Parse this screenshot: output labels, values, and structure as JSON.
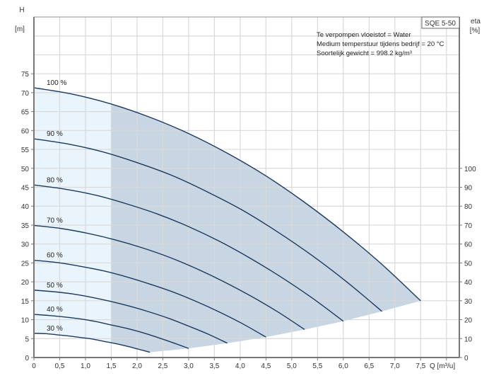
{
  "chart_data": {
    "type": "line",
    "title_box": "SQE 5-50",
    "info_lines": [
      "Te verpompen vloeistof = Water",
      "Medium temperstuur tijdens bedrijf = 20 °C",
      "Soortelijk gewicht = 998.2 kg/m³"
    ],
    "ylabel": "H",
    "ylabel_unit": "[m]",
    "y2label": "eta",
    "y2label_unit": "[%]",
    "xlabel": "Q [m³/u]",
    "xlim": [
      0,
      8.25
    ],
    "ylim": [
      0,
      90
    ],
    "y2lim": [
      0,
      180
    ],
    "grid": true,
    "x_ticks": [
      "0",
      "0,5",
      "1,0",
      "1,5",
      "2,0",
      "2,5",
      "3,0",
      "3,5",
      "4,0",
      "4,5",
      "5,0",
      "5,5",
      "6,0",
      "6,5",
      "7,0",
      "7,5"
    ],
    "x_tick_values": [
      0,
      0.5,
      1,
      1.5,
      2,
      2.5,
      3,
      3.5,
      4,
      4.5,
      5,
      5.5,
      6,
      6.5,
      7,
      7.5
    ],
    "y_ticks": [
      0,
      5,
      10,
      15,
      20,
      25,
      30,
      35,
      40,
      45,
      50,
      55,
      60,
      65,
      70,
      75
    ],
    "y2_ticks": [
      0,
      10,
      20,
      30,
      40,
      50,
      60,
      70,
      80,
      90,
      100
    ],
    "region_split_q": 1.5,
    "colors": {
      "curve": "#1d3a5f",
      "light_region": "#eaf4fd",
      "dark_region": "#c8d5e2",
      "grid": "#d9d9d9",
      "axis": "#777777"
    },
    "series": [
      {
        "name": "100 %",
        "x": [
          0,
          0.75,
          1.5,
          2.25,
          3,
          3.75,
          4.5,
          5.25,
          6,
          6.75,
          7.5
        ],
        "y": [
          71.3,
          69.6,
          67.0,
          63.5,
          59.2,
          54.0,
          48.0,
          41.0,
          33.2,
          24.6,
          15.0
        ]
      },
      {
        "name": "90 %",
        "x": [
          0,
          0.675,
          1.35,
          2.025,
          2.7,
          3.375,
          4.05,
          4.725,
          5.4,
          6.075,
          6.75
        ],
        "y": [
          57.8,
          56.4,
          54.3,
          51.4,
          48.0,
          43.7,
          38.9,
          33.2,
          26.9,
          19.9,
          12.2
        ]
      },
      {
        "name": "80 %",
        "x": [
          0,
          0.6,
          1.2,
          1.8,
          2.4,
          3.0,
          3.6,
          4.2,
          4.8,
          5.4,
          6.0
        ],
        "y": [
          45.6,
          44.5,
          42.9,
          40.6,
          37.9,
          34.6,
          30.7,
          26.2,
          21.2,
          15.7,
          9.6
        ]
      },
      {
        "name": "70 %",
        "x": [
          0,
          0.525,
          1.05,
          1.575,
          2.1,
          2.625,
          3.15,
          3.675,
          4.2,
          4.725,
          5.25
        ],
        "y": [
          34.9,
          34.1,
          32.8,
          31.1,
          29.0,
          26.5,
          23.5,
          20.1,
          16.3,
          12.1,
          7.4
        ]
      },
      {
        "name": "60 %",
        "x": [
          0,
          0.45,
          0.9,
          1.35,
          1.8,
          2.25,
          2.7,
          3.15,
          3.6,
          4.05,
          4.5
        ],
        "y": [
          25.7,
          25.1,
          24.1,
          22.9,
          21.3,
          19.4,
          17.3,
          14.8,
          12.0,
          8.9,
          5.4
        ]
      },
      {
        "name": "50 %",
        "x": [
          0,
          0.375,
          0.75,
          1.125,
          1.5,
          1.875,
          2.25,
          2.625,
          3.0,
          3.375,
          3.75
        ],
        "y": [
          17.8,
          17.4,
          16.8,
          15.9,
          14.8,
          13.5,
          12.0,
          10.3,
          8.3,
          6.2,
          3.8
        ]
      },
      {
        "name": "40 %",
        "x": [
          0,
          0.3,
          0.6,
          0.9,
          1.2,
          1.5,
          1.8,
          2.1,
          2.4,
          2.7,
          3.0
        ],
        "y": [
          11.4,
          11.1,
          10.7,
          10.2,
          9.5,
          8.6,
          7.7,
          6.6,
          5.3,
          3.9,
          2.4
        ]
      },
      {
        "name": "30 %",
        "x": [
          0,
          0.225,
          0.45,
          0.675,
          0.9,
          1.125,
          1.35,
          1.575,
          1.8,
          2.025,
          2.25
        ],
        "y": [
          6.4,
          6.3,
          6.0,
          5.7,
          5.3,
          4.9,
          4.3,
          3.7,
          3.0,
          2.2,
          1.4
        ]
      }
    ]
  }
}
